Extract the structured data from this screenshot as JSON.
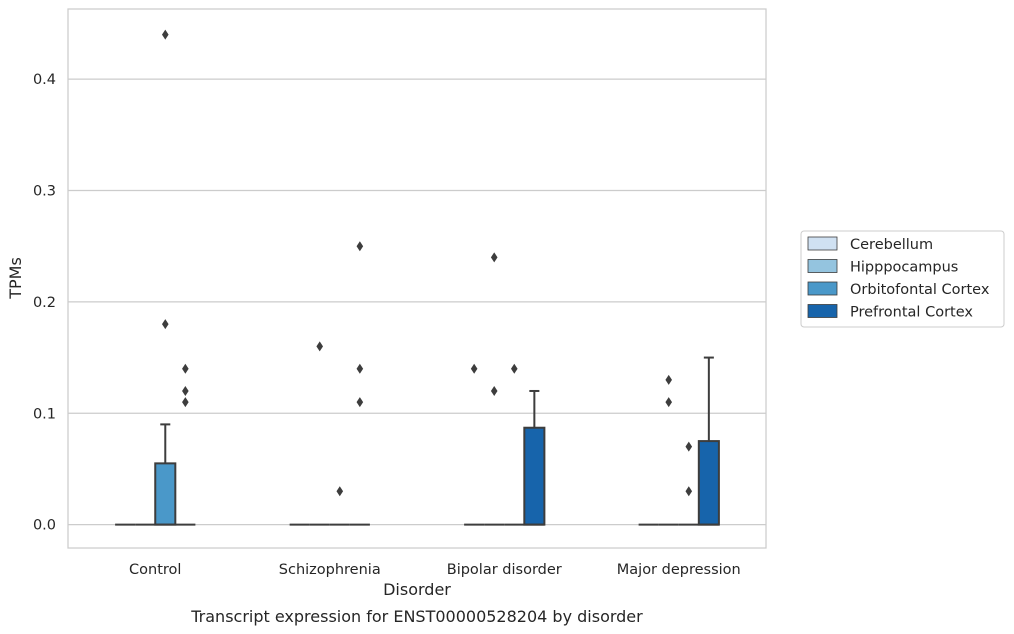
{
  "caption": "Transcript expression for ENST00000528204 by disorder",
  "chart_data": {
    "type": "box",
    "title": "",
    "xlabel": "Disorder",
    "ylabel": "TPMs",
    "ylim": [
      -0.021,
      0.463
    ],
    "yticks": [
      0.0,
      0.1,
      0.2,
      0.3,
      0.4
    ],
    "ytick_labels": [
      "0.0",
      "0.1",
      "0.2",
      "0.3",
      "0.4"
    ],
    "grid": "horizontal",
    "legend_position": "right",
    "categories": [
      "Control",
      "Schizophrenia",
      "Bipolar disorder",
      "Major depression"
    ],
    "series": [
      {
        "name": "Cerebellum",
        "color": "#d0e1f2",
        "boxes": [
          {
            "q1": 0,
            "median": 0,
            "q3": 0,
            "whisker_low": 0,
            "whisker_high": 0,
            "outliers": []
          },
          {
            "q1": 0,
            "median": 0,
            "q3": 0,
            "whisker_low": 0,
            "whisker_high": 0,
            "outliers": []
          },
          {
            "q1": 0,
            "median": 0,
            "q3": 0,
            "whisker_low": 0,
            "whisker_high": 0,
            "outliers": [
              0.14
            ]
          },
          {
            "q1": 0,
            "median": 0,
            "q3": 0,
            "whisker_low": 0,
            "whisker_high": 0,
            "outliers": []
          }
        ]
      },
      {
        "name": "Hipppocampus",
        "color": "#94c4df",
        "boxes": [
          {
            "q1": 0,
            "median": 0,
            "q3": 0,
            "whisker_low": 0,
            "whisker_high": 0,
            "outliers": []
          },
          {
            "q1": 0,
            "median": 0,
            "q3": 0,
            "whisker_low": 0,
            "whisker_high": 0,
            "outliers": [
              0.16
            ]
          },
          {
            "q1": 0,
            "median": 0,
            "q3": 0,
            "whisker_low": 0,
            "whisker_high": 0,
            "outliers": [
              0.24,
              0.12
            ]
          },
          {
            "q1": 0,
            "median": 0,
            "q3": 0,
            "whisker_low": 0,
            "whisker_high": 0,
            "outliers": [
              0.13,
              0.11
            ]
          }
        ]
      },
      {
        "name": "Orbitofontal Cortex",
        "color": "#4a98c9",
        "boxes": [
          {
            "q1": 0,
            "median": 0,
            "q3": 0.055,
            "whisker_low": 0,
            "whisker_high": 0.09,
            "outliers": [
              0.44,
              0.18
            ]
          },
          {
            "q1": 0,
            "median": 0,
            "q3": 0,
            "whisker_low": 0,
            "whisker_high": 0,
            "outliers": [
              0.03
            ]
          },
          {
            "q1": 0,
            "median": 0,
            "q3": 0,
            "whisker_low": 0,
            "whisker_high": 0,
            "outliers": [
              0.14
            ]
          },
          {
            "q1": 0,
            "median": 0,
            "q3": 0,
            "whisker_low": 0,
            "whisker_high": 0,
            "outliers": [
              0.03,
              0.07
            ]
          }
        ]
      },
      {
        "name": "Prefrontal Cortex",
        "color": "#1764ab",
        "boxes": [
          {
            "q1": 0,
            "median": 0,
            "q3": 0,
            "whisker_low": 0,
            "whisker_high": 0,
            "outliers": [
              0.14,
              0.12,
              0.11
            ]
          },
          {
            "q1": 0,
            "median": 0,
            "q3": 0,
            "whisker_low": 0,
            "whisker_high": 0,
            "outliers": [
              0.25,
              0.14,
              0.11
            ]
          },
          {
            "q1": 0,
            "median": 0,
            "q3": 0.087,
            "whisker_low": 0,
            "whisker_high": 0.12,
            "outliers": []
          },
          {
            "q1": 0,
            "median": 0,
            "q3": 0.075,
            "whisker_low": 0,
            "whisker_high": 0.15,
            "outliers": []
          }
        ]
      }
    ]
  }
}
